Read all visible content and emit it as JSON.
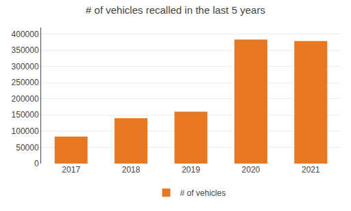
{
  "chart_data": {
    "type": "bar",
    "title": "# of vehicles recalled in the last 5 years",
    "categories": [
      "2017",
      "2018",
      "2019",
      "2020",
      "2021"
    ],
    "series": [
      {
        "name": "# of vehicles",
        "color": "#E87722",
        "values": [
          83000,
          140000,
          160000,
          383000,
          378000
        ]
      }
    ],
    "ylim": [
      0,
      420000
    ],
    "yticks": [
      0,
      50000,
      100000,
      150000,
      200000,
      250000,
      300000,
      350000,
      400000
    ],
    "grid": true,
    "legend": "bottom"
  }
}
